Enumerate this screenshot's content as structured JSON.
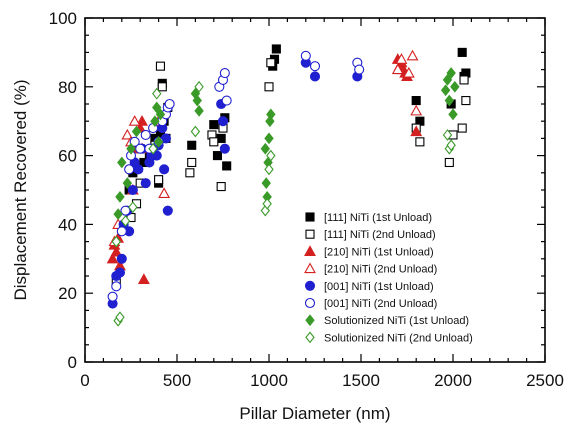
{
  "chart_data": {
    "type": "scatter",
    "title": "",
    "xlabel": "Pillar Diameter (nm)",
    "ylabel": "Displacement Recovered (%)",
    "xlim": [
      0,
      2500
    ],
    "ylim": [
      0,
      100
    ],
    "xticks": [
      "0",
      "500",
      "1000",
      "1500",
      "2000",
      "2500"
    ],
    "yticks": [
      "0",
      "20",
      "40",
      "60",
      "80",
      "100"
    ],
    "grid": false,
    "legend_position": "bottom-right",
    "series": [
      {
        "name": "[111] NiTi (1st Unload)",
        "marker": "square",
        "filled": true,
        "color": "#000000",
        "x": [
          240,
          260,
          300,
          320,
          350,
          380,
          400,
          410,
          420,
          430,
          450,
          580,
          700,
          720,
          740,
          760,
          770,
          1020,
          1030,
          1040,
          1800,
          1820,
          1990,
          2050,
          2060,
          2070
        ],
        "y": [
          50,
          55,
          62,
          58,
          60,
          65,
          52,
          66,
          81,
          70,
          74,
          63,
          69,
          60,
          65,
          71,
          57,
          86,
          88,
          91,
          76,
          70,
          75,
          90,
          83,
          84
        ]
      },
      {
        "name": "[111] NiTi (2nd Unload)",
        "marker": "square",
        "filled": false,
        "color": "#000000",
        "x": [
          170,
          250,
          280,
          300,
          360,
          380,
          400,
          410,
          420,
          440,
          570,
          580,
          690,
          700,
          740,
          750,
          1000,
          1010,
          1800,
          1820,
          1980,
          2000,
          2050,
          2060,
          2070
        ],
        "y": [
          23,
          42,
          46,
          52,
          60,
          63,
          53,
          86,
          80,
          65,
          55,
          58,
          66,
          64,
          51,
          68,
          80,
          87,
          68,
          64,
          58,
          66,
          68,
          82,
          76
        ]
      },
      {
        "name": "[210] NiTi (1st Unload)",
        "marker": "triangle",
        "filled": true,
        "color": "#d42020",
        "x": [
          150,
          160,
          170,
          180,
          190,
          260,
          280,
          300,
          310,
          320,
          1700,
          1710,
          1720,
          1730,
          1740,
          1750,
          1800
        ],
        "y": [
          30,
          34,
          32,
          36,
          28,
          50,
          62,
          68,
          70,
          24,
          88,
          86,
          87,
          85,
          84,
          83,
          67
        ]
      },
      {
        "name": "[210] NiTi (2nd Unload)",
        "marker": "triangle",
        "filled": false,
        "color": "#d42020",
        "x": [
          160,
          180,
          230,
          250,
          270,
          310,
          400,
          430,
          1700,
          1720,
          1760,
          1780,
          1800
        ],
        "y": [
          35,
          40,
          66,
          64,
          70,
          62,
          70,
          49,
          85,
          88,
          84,
          89,
          73
        ]
      },
      {
        "name": "[001] NiTi (1st Unload)",
        "marker": "circle",
        "filled": true,
        "color": "#2020d0",
        "x": [
          150,
          170,
          190,
          200,
          210,
          230,
          240,
          260,
          270,
          290,
          310,
          330,
          350,
          360,
          370,
          390,
          400,
          420,
          430,
          440,
          450,
          740,
          750,
          760,
          1200,
          1250,
          1480
        ],
        "y": [
          17,
          25,
          26,
          30,
          40,
          44,
          38,
          50,
          58,
          56,
          62,
          52,
          58,
          60,
          62,
          60,
          63,
          68,
          56,
          65,
          44,
          75,
          70,
          62,
          87,
          83,
          83
        ]
      },
      {
        "name": "[001] NiTi (2nd Unload)",
        "marker": "circle",
        "filled": false,
        "color": "#2020d0",
        "x": [
          150,
          170,
          200,
          220,
          240,
          250,
          270,
          300,
          330,
          350,
          370,
          400,
          420,
          440,
          450,
          460,
          730,
          750,
          760,
          770,
          1200,
          1250,
          1480,
          1490
        ],
        "y": [
          19,
          22,
          38,
          44,
          56,
          60,
          64,
          62,
          66,
          62,
          68,
          64,
          70,
          72,
          74,
          75,
          80,
          82,
          84,
          76,
          89,
          86,
          87,
          85
        ]
      },
      {
        "name": "Solutionized NiTi (1st Unload)",
        "marker": "diamond",
        "filled": true,
        "color": "#3a9a28",
        "x": [
          180,
          190,
          200,
          230,
          250,
          280,
          380,
          390,
          400,
          410,
          600,
          610,
          620,
          980,
          985,
          990,
          995,
          1000,
          1005,
          1010,
          1960,
          1970,
          1980,
          1990,
          2000,
          2010
        ],
        "y": [
          43,
          48,
          58,
          52,
          62,
          67,
          70,
          74,
          64,
          72,
          78,
          76,
          73,
          62,
          52,
          48,
          58,
          65,
          70,
          72,
          79,
          82,
          76,
          84,
          72,
          80
        ]
      },
      {
        "name": "Solutionized NiTi (2nd Unload)",
        "marker": "diamond",
        "filled": false,
        "color": "#3a9a28",
        "x": [
          170,
          180,
          190,
          220,
          260,
          370,
          390,
          600,
          620,
          980,
          990,
          1000,
          1010,
          1970,
          1980,
          1990
        ],
        "y": [
          35,
          12,
          13,
          41,
          45,
          62,
          78,
          67,
          80,
          44,
          46,
          56,
          60,
          66,
          62,
          63
        ]
      }
    ]
  }
}
